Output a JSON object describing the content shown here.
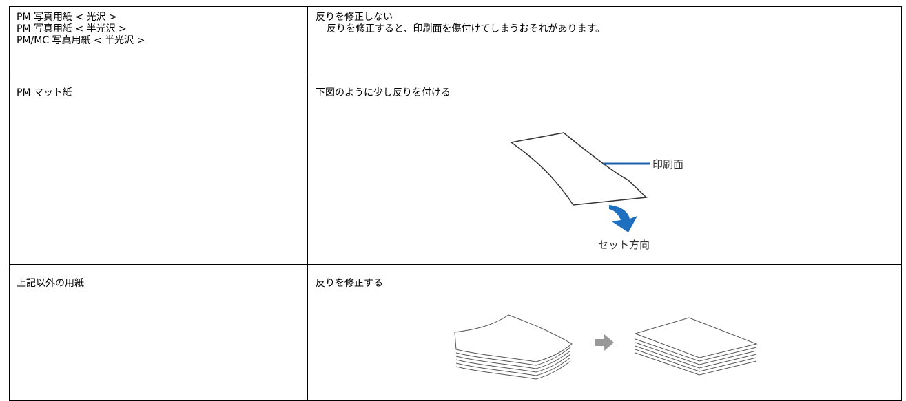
{
  "table": {
    "rows": [
      {
        "paper": [
          "PM 写真用紙 < 光沢 >",
          "PM 写真用紙 < 半光沢 >",
          "PM/MC 写真用紙 < 半光沢 >"
        ],
        "instruction": "反りを修正しない",
        "note": "反りを修正すると、印刷面を傷付けてしまうおそれがあります。"
      },
      {
        "paper": [
          "PM マット紙"
        ],
        "instruction": "下図のように少し反りを付ける",
        "figure": {
          "surface_label": "印刷面",
          "direction_label": "セット方向"
        }
      },
      {
        "paper": [
          "上記以外の用紙"
        ],
        "instruction": "反りを修正する"
      }
    ]
  }
}
